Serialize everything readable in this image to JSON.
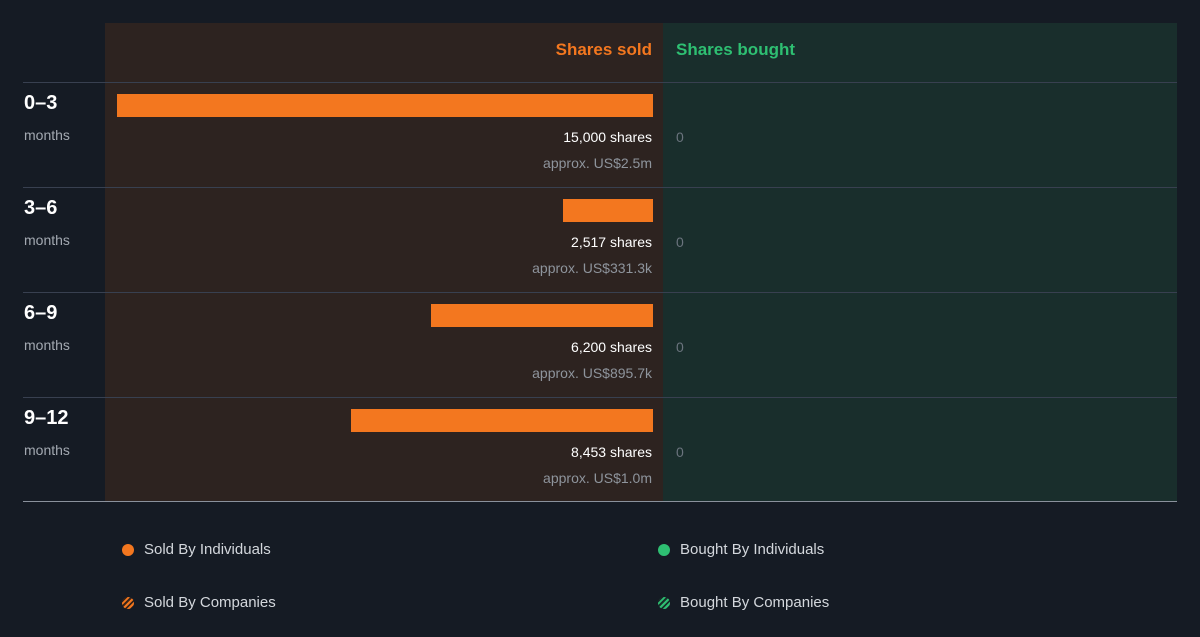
{
  "colors": {
    "sold": "#f3771f",
    "bought": "#2ebf72"
  },
  "header": {
    "sold_label": "Shares sold",
    "bought_label": "Shares bought"
  },
  "chart_data": {
    "type": "bar",
    "orientation": "horizontal",
    "categories": [
      "0–3 months",
      "3–6 months",
      "6–9 months",
      "9–12 months"
    ],
    "series": [
      {
        "name": "Shares sold",
        "values": [
          15000,
          2517,
          6200,
          8453
        ]
      },
      {
        "name": "Shares bought",
        "values": [
          0,
          0,
          0,
          0
        ]
      }
    ],
    "title": "",
    "xlabel": "",
    "ylabel": ""
  },
  "rows": [
    {
      "period": "0–3",
      "unit": "months",
      "shares_text": "15,000 shares",
      "approx_text": "approx. US$2.5m",
      "bought_text": "0"
    },
    {
      "period": "3–6",
      "unit": "months",
      "shares_text": "2,517 shares",
      "approx_text": "approx. US$331.3k",
      "bought_text": "0"
    },
    {
      "period": "6–9",
      "unit": "months",
      "shares_text": "6,200 shares",
      "approx_text": "approx. US$895.7k",
      "bought_text": "0"
    },
    {
      "period": "9–12",
      "unit": "months",
      "shares_text": "8,453 shares",
      "approx_text": "approx. US$1.0m",
      "bought_text": "0"
    }
  ],
  "legend": {
    "sold_individuals": "Sold By Individuals",
    "sold_companies": "Sold By Companies",
    "bought_individuals": "Bought By Individuals",
    "bought_companies": "Bought By Companies"
  }
}
